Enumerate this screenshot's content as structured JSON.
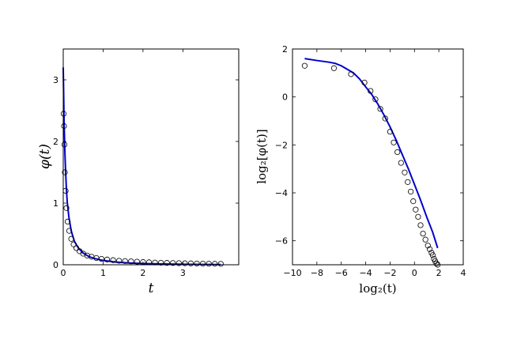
{
  "chart_data": [
    {
      "type": "line",
      "xlabel": "t",
      "ylabel": "φ(t)",
      "xlim": [
        0,
        4.4
      ],
      "ylim": [
        0,
        3.5
      ],
      "xticks": [
        0,
        1,
        2,
        3
      ],
      "yticks": [
        0,
        1,
        2,
        3
      ],
      "grid": false,
      "series": [
        {
          "style": "line",
          "color": "#0000cc",
          "x": [
            0.0,
            0.02,
            0.04,
            0.06,
            0.08,
            0.1,
            0.14,
            0.2,
            0.28,
            0.38,
            0.5,
            0.65,
            0.8,
            1.0,
            1.3,
            1.6,
            2.0,
            2.5,
            3.0,
            3.5,
            3.95
          ],
          "y": [
            3.2,
            2.35,
            1.85,
            1.5,
            1.22,
            1.02,
            0.78,
            0.55,
            0.38,
            0.27,
            0.19,
            0.13,
            0.1,
            0.07,
            0.045,
            0.03,
            0.02,
            0.012,
            0.008,
            0.005,
            0.003
          ]
        },
        {
          "style": "markers",
          "marker": "open-circle",
          "x": [
            0.01,
            0.02,
            0.03,
            0.04,
            0.06,
            0.08,
            0.11,
            0.15,
            0.2,
            0.26,
            0.33,
            0.41,
            0.5,
            0.6,
            0.71,
            0.83,
            0.96,
            1.1,
            1.25,
            1.4,
            1.55,
            1.7,
            1.85,
            2.0,
            2.15,
            2.3,
            2.45,
            2.6,
            2.75,
            2.9,
            3.05,
            3.2,
            3.35,
            3.5,
            3.65,
            3.8,
            3.95
          ],
          "y": [
            2.45,
            2.25,
            1.95,
            1.5,
            1.2,
            0.92,
            0.7,
            0.55,
            0.42,
            0.33,
            0.27,
            0.22,
            0.18,
            0.15,
            0.13,
            0.11,
            0.095,
            0.085,
            0.075,
            0.065,
            0.06,
            0.055,
            0.05,
            0.045,
            0.04,
            0.036,
            0.033,
            0.03,
            0.028,
            0.026,
            0.024,
            0.022,
            0.02,
            0.018,
            0.017,
            0.016,
            0.015
          ]
        }
      ]
    },
    {
      "type": "line",
      "xlabel": "log₂(t)",
      "ylabel": "log₂[φ(t)]",
      "xlim": [
        -10,
        4
      ],
      "ylim": [
        -7,
        2
      ],
      "xticks": [
        -10,
        -8,
        -6,
        -4,
        -2,
        0,
        2,
        4
      ],
      "yticks": [
        2,
        0,
        -2,
        -4,
        -6
      ],
      "grid": false,
      "series": [
        {
          "style": "line",
          "color": "#0000cc",
          "x": [
            -9,
            -8,
            -7,
            -6.5,
            -6,
            -5.5,
            -5,
            -4.5,
            -4,
            -3.5,
            -3,
            -2.5,
            -2,
            -1.5,
            -1,
            -0.5,
            0,
            0.5,
            1,
            1.5,
            1.9
          ],
          "y": [
            1.6,
            1.52,
            1.45,
            1.4,
            1.3,
            1.15,
            1.0,
            0.75,
            0.42,
            0.1,
            -0.3,
            -0.75,
            -1.25,
            -1.8,
            -2.4,
            -3.0,
            -3.65,
            -4.3,
            -5.0,
            -5.65,
            -6.3
          ]
        },
        {
          "style": "markers",
          "marker": "open-circle",
          "x": [
            -9.0,
            -6.6,
            -5.2,
            -4.1,
            -3.6,
            -3.2,
            -2.8,
            -2.4,
            -2.0,
            -1.7,
            -1.4,
            -1.1,
            -0.8,
            -0.55,
            -0.3,
            -0.1,
            0.1,
            0.3,
            0.5,
            0.7,
            0.9,
            1.1,
            1.25,
            1.4,
            1.5,
            1.6,
            1.7,
            1.8,
            1.9
          ],
          "y": [
            1.3,
            1.2,
            0.95,
            0.6,
            0.25,
            -0.1,
            -0.5,
            -0.9,
            -1.45,
            -1.9,
            -2.3,
            -2.75,
            -3.15,
            -3.55,
            -3.95,
            -4.35,
            -4.7,
            -5.0,
            -5.35,
            -5.7,
            -5.95,
            -6.2,
            -6.35,
            -6.5,
            -6.6,
            -6.75,
            -6.85,
            -6.95,
            -7.0
          ]
        }
      ]
    }
  ]
}
